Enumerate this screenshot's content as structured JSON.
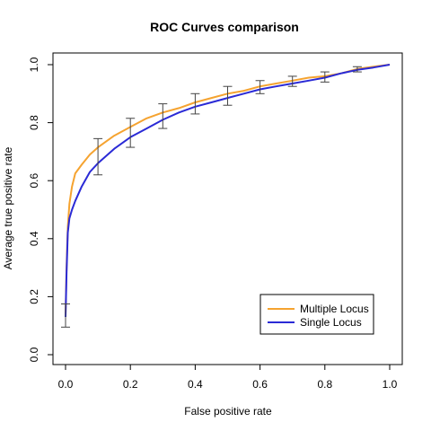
{
  "chart_data": {
    "type": "line",
    "title": "ROC Curves comparison",
    "xlabel": "False positive rate",
    "ylabel": "Average true positive rate",
    "xlim": [
      0,
      1
    ],
    "ylim": [
      0,
      1
    ],
    "xticks": [
      "0.0",
      "0.2",
      "0.4",
      "0.6",
      "0.8",
      "1.0"
    ],
    "yticks": [
      "0.0",
      "0.2",
      "0.4",
      "0.6",
      "0.8",
      "1.0"
    ],
    "grid": false,
    "legend_position": "bottom-right",
    "series": [
      {
        "name": "Multiple Locus",
        "color": "#f5a330",
        "points": [
          [
            0,
            0.14
          ],
          [
            0.003,
            0.3
          ],
          [
            0.007,
            0.44
          ],
          [
            0.012,
            0.52
          ],
          [
            0.02,
            0.58
          ],
          [
            0.03,
            0.625
          ],
          [
            0.05,
            0.655
          ],
          [
            0.075,
            0.69
          ],
          [
            0.1,
            0.715
          ],
          [
            0.15,
            0.755
          ],
          [
            0.2,
            0.785
          ],
          [
            0.25,
            0.815
          ],
          [
            0.3,
            0.835
          ],
          [
            0.35,
            0.85
          ],
          [
            0.4,
            0.87
          ],
          [
            0.45,
            0.885
          ],
          [
            0.5,
            0.9
          ],
          [
            0.55,
            0.91
          ],
          [
            0.6,
            0.925
          ],
          [
            0.65,
            0.935
          ],
          [
            0.7,
            0.945
          ],
          [
            0.75,
            0.955
          ],
          [
            0.8,
            0.96
          ],
          [
            0.85,
            0.97
          ],
          [
            0.9,
            0.985
          ],
          [
            0.95,
            0.993
          ],
          [
            1.0,
            1.0
          ]
        ]
      },
      {
        "name": "Single Locus",
        "color": "#2a2ad6",
        "points": [
          [
            0,
            0.13
          ],
          [
            0.003,
            0.28
          ],
          [
            0.007,
            0.42
          ],
          [
            0.012,
            0.47
          ],
          [
            0.02,
            0.5
          ],
          [
            0.03,
            0.53
          ],
          [
            0.05,
            0.58
          ],
          [
            0.075,
            0.63
          ],
          [
            0.1,
            0.66
          ],
          [
            0.15,
            0.71
          ],
          [
            0.2,
            0.75
          ],
          [
            0.25,
            0.78
          ],
          [
            0.3,
            0.81
          ],
          [
            0.35,
            0.835
          ],
          [
            0.4,
            0.855
          ],
          [
            0.45,
            0.87
          ],
          [
            0.5,
            0.885
          ],
          [
            0.55,
            0.9
          ],
          [
            0.6,
            0.915
          ],
          [
            0.65,
            0.925
          ],
          [
            0.7,
            0.935
          ],
          [
            0.75,
            0.945
          ],
          [
            0.8,
            0.955
          ],
          [
            0.85,
            0.97
          ],
          [
            0.9,
            0.982
          ],
          [
            0.95,
            0.99
          ],
          [
            1.0,
            1.0
          ]
        ]
      }
    ],
    "error_bars": [
      {
        "x": 0.0,
        "low": 0.095,
        "high": 0.175
      },
      {
        "x": 0.1,
        "low": 0.62,
        "high": 0.745
      },
      {
        "x": 0.2,
        "low": 0.715,
        "high": 0.815
      },
      {
        "x": 0.3,
        "low": 0.78,
        "high": 0.865
      },
      {
        "x": 0.4,
        "low": 0.83,
        "high": 0.9
      },
      {
        "x": 0.5,
        "low": 0.86,
        "high": 0.925
      },
      {
        "x": 0.6,
        "low": 0.9,
        "high": 0.945
      },
      {
        "x": 0.7,
        "low": 0.925,
        "high": 0.96
      },
      {
        "x": 0.8,
        "low": 0.94,
        "high": 0.975
      },
      {
        "x": 0.9,
        "low": 0.975,
        "high": 0.993
      }
    ]
  }
}
